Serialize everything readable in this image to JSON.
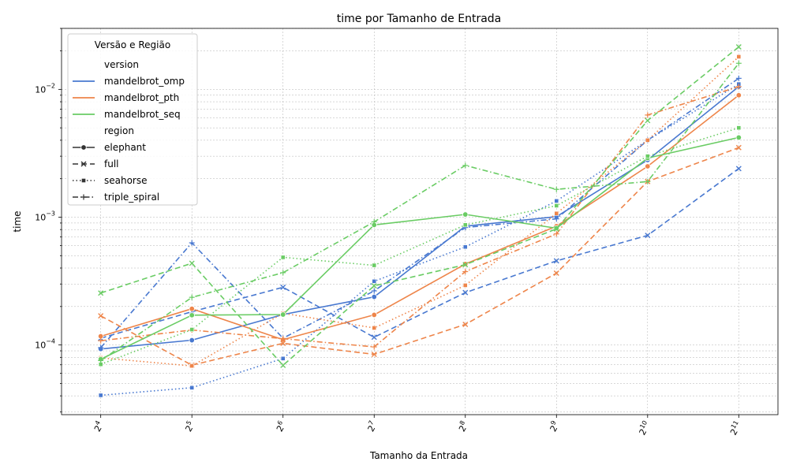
{
  "chart_data": {
    "type": "line",
    "title": "time por Tamanho de Entrada",
    "xlabel": "Tamanho da Entrada",
    "ylabel": "time",
    "x_scale": "log2",
    "y_scale": "log10",
    "x": [
      16,
      32,
      64,
      128,
      256,
      512,
      1024,
      2048
    ],
    "x_tick_labels": [
      {
        "base": "2",
        "exp": "4"
      },
      {
        "base": "2",
        "exp": "5"
      },
      {
        "base": "2",
        "exp": "6"
      },
      {
        "base": "2",
        "exp": "7"
      },
      {
        "base": "2",
        "exp": "8"
      },
      {
        "base": "2",
        "exp": "9"
      },
      {
        "base": "2",
        "exp": "10"
      },
      {
        "base": "2",
        "exp": "11"
      }
    ],
    "y_ticks": [
      {
        "value": 0.0001,
        "base": "10",
        "exp": "−4"
      },
      {
        "value": 0.001,
        "base": "10",
        "exp": "−3"
      },
      {
        "value": 0.01,
        "base": "10",
        "exp": "−2"
      }
    ],
    "ylim": [
      2.85e-05,
      0.03
    ],
    "grid": true,
    "legend": {
      "title": "Versão e Região",
      "placement": "top-left",
      "version_header": "version",
      "region_header": "region",
      "versions": [
        {
          "name": "mandelbrot_omp",
          "color": "#4878d0"
        },
        {
          "name": "mandelbrot_pth",
          "color": "#ee854a"
        },
        {
          "name": "mandelbrot_seq",
          "color": "#6acc64"
        }
      ],
      "regions": [
        {
          "name": "elephant",
          "dash": "solid",
          "marker": "circle"
        },
        {
          "name": "full",
          "dash": "dashed",
          "marker": "x"
        },
        {
          "name": "seahorse",
          "dash": "dotted",
          "marker": "square"
        },
        {
          "name": "triple_spiral",
          "dash": "dashdot",
          "marker": "plus"
        }
      ]
    },
    "series": [
      {
        "name": "mandelbrot_omp",
        "region": "elephant",
        "color": "#4878d0",
        "dash": "solid",
        "marker": "circle",
        "values": [
          9.3e-05,
          0.000109,
          0.000173,
          0.000238,
          0.00085,
          0.00101,
          0.0028,
          0.0105
        ]
      },
      {
        "name": "mandelbrot_omp",
        "region": "full",
        "color": "#4878d0",
        "dash": "dashed",
        "marker": "x",
        "values": [
          0.000113,
          0.000182,
          0.000283,
          0.000115,
          0.000257,
          0.000455,
          0.00072,
          0.0024
        ]
      },
      {
        "name": "mandelbrot_omp",
        "region": "seahorse",
        "color": "#4878d0",
        "dash": "dotted",
        "marker": "square",
        "values": [
          4.04e-05,
          4.63e-05,
          7.84e-05,
          0.000315,
          0.000585,
          0.00134,
          0.004,
          0.011
        ]
      },
      {
        "name": "mandelbrot_omp",
        "region": "triple_spiral",
        "color": "#4878d0",
        "dash": "dashdot",
        "marker": "plus",
        "values": [
          9.53e-05,
          0.00063,
          0.000113,
          0.000265,
          0.00083,
          0.00097,
          0.004,
          0.0122
        ]
      },
      {
        "name": "mandelbrot_pth",
        "region": "elephant",
        "color": "#ee854a",
        "dash": "solid",
        "marker": "circle",
        "values": [
          0.000117,
          0.000192,
          0.00011,
          0.000172,
          0.00043,
          0.00085,
          0.0025,
          0.009
        ]
      },
      {
        "name": "mandelbrot_pth",
        "region": "full",
        "color": "#ee854a",
        "dash": "dashed",
        "marker": "x",
        "values": [
          0.000169,
          6.95e-05,
          0.000103,
          8.45e-05,
          0.000145,
          0.000365,
          0.0019,
          0.0035
        ]
      },
      {
        "name": "mandelbrot_pth",
        "region": "seahorse",
        "color": "#ee854a",
        "dash": "dotted",
        "marker": "square",
        "values": [
          7.93e-05,
          6.86e-05,
          0.000177,
          0.000136,
          0.000293,
          0.00107,
          0.004,
          0.018
        ]
      },
      {
        "name": "mandelbrot_pth",
        "region": "triple_spiral",
        "color": "#ee854a",
        "dash": "dashdot",
        "marker": "plus",
        "values": [
          0.000108,
          0.000131,
          0.000112,
          9.66e-05,
          0.000375,
          0.00074,
          0.0063,
          0.0105
        ]
      },
      {
        "name": "mandelbrot_seq",
        "region": "elephant",
        "color": "#6acc64",
        "dash": "solid",
        "marker": "circle",
        "values": [
          7.75e-05,
          0.000171,
          0.000173,
          0.00087,
          0.00105,
          0.00082,
          0.0029,
          0.0042
        ]
      },
      {
        "name": "mandelbrot_seq",
        "region": "full",
        "color": "#6acc64",
        "dash": "dashed",
        "marker": "x",
        "values": [
          0.000255,
          0.000436,
          6.93e-05,
          0.00029,
          0.000425,
          0.00081,
          0.0057,
          0.0215
        ]
      },
      {
        "name": "mandelbrot_seq",
        "region": "seahorse",
        "color": "#6acc64",
        "dash": "dotted",
        "marker": "square",
        "values": [
          7.06e-05,
          0.000132,
          0.000485,
          0.00042,
          0.00087,
          0.00123,
          0.003,
          0.005
        ]
      },
      {
        "name": "mandelbrot_seq",
        "region": "triple_spiral",
        "color": "#6acc64",
        "dash": "dashdot",
        "marker": "plus",
        "values": [
          7.55e-05,
          0.000236,
          0.000368,
          0.00092,
          0.00254,
          0.00165,
          0.0019,
          0.016
        ]
      }
    ]
  }
}
